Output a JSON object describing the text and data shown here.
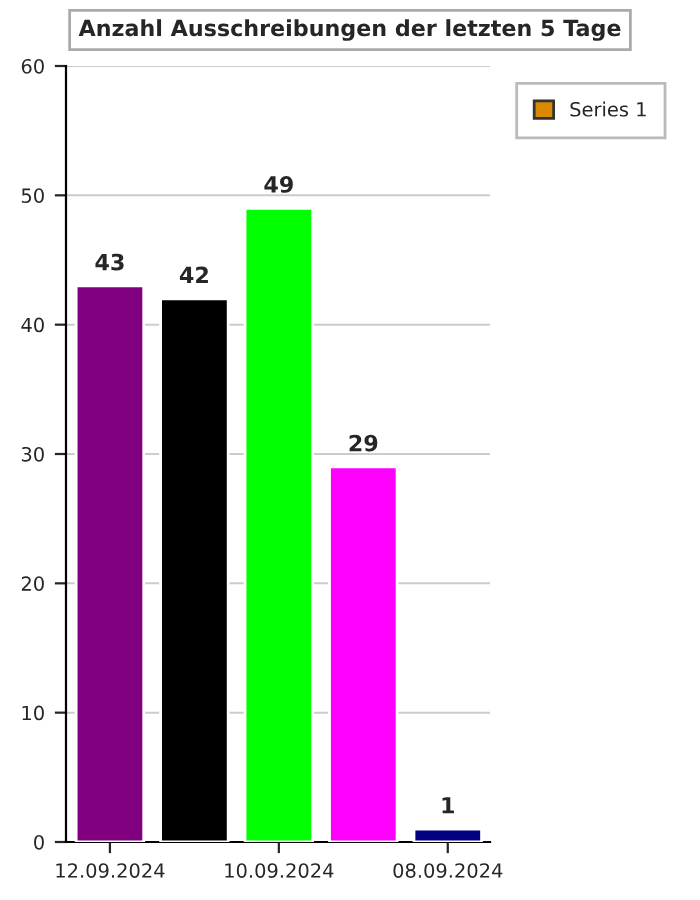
{
  "chart_data": {
    "type": "bar",
    "title": "Anzahl Ausschreibungen der letzten 5 Tage",
    "categories": [
      "12.09.2024",
      null,
      "10.09.2024",
      null,
      "08.09.2024"
    ],
    "series": [
      {
        "name": "Series 1",
        "color": "#d98a00",
        "values": [
          43,
          42,
          49,
          29,
          1
        ],
        "colors": [
          "#800080",
          "#000000",
          "#00ff00",
          "#ff00ff",
          "#000080"
        ]
      }
    ],
    "ylim": [
      0,
      60
    ],
    "yticks": [
      0,
      10,
      20,
      30,
      40,
      50,
      60
    ],
    "grid": "y",
    "legend": "top right",
    "data_labels": true
  }
}
